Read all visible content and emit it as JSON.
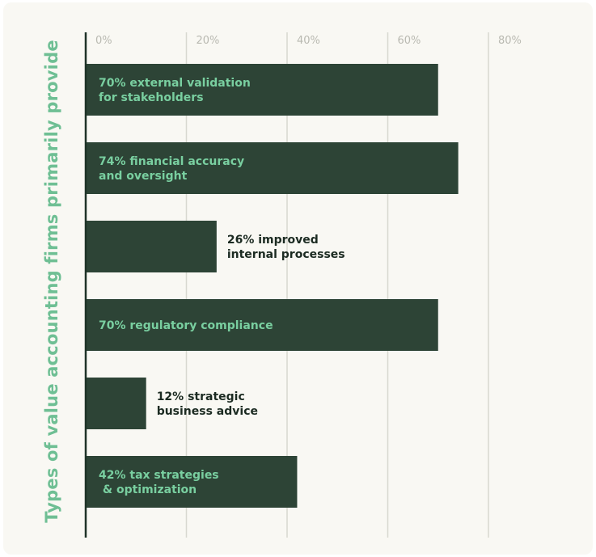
{
  "chart_data": {
    "type": "bar",
    "orientation": "horizontal",
    "title": "",
    "ylabel": "Types of value accounting firms primarily provide",
    "xlabel": "",
    "xlim": [
      0,
      80
    ],
    "x_ticks": [
      "0%",
      "20%",
      "40%",
      "60%",
      "80%"
    ],
    "grid": true,
    "categories": [
      "external validation for stakeholders",
      "financial accuracy and oversight",
      "improved internal processes",
      "regulatory compliance",
      "strategic business advice",
      "tax strategies & optimization"
    ],
    "values": [
      70,
      74,
      26,
      70,
      12,
      42
    ],
    "data_labels": [
      [
        "70% external validation",
        "for stakeholders"
      ],
      [
        "74% financial accuracy",
        "and oversight"
      ],
      [
        "26% improved",
        "internal processes"
      ],
      [
        "70% regulatory compliance"
      ],
      [
        "12% strategic",
        "business advice"
      ],
      [
        "42% tax strategies",
        " & optimization"
      ]
    ],
    "colors": {
      "bar": "#2d4436",
      "label_inside": "#79cfa0",
      "label_outside": "#1c2b22",
      "axis": "#1f3328",
      "grid": "#d8d8d0",
      "tick": "#b9b9b1",
      "background": "#f9f8f3"
    }
  }
}
